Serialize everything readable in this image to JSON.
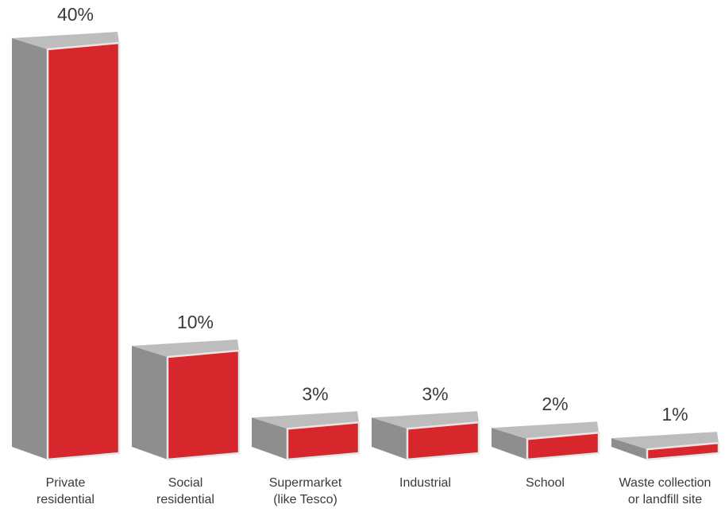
{
  "chart_data": {
    "type": "bar",
    "categories": [
      [
        "Private",
        "residential"
      ],
      [
        "Social",
        "residential"
      ],
      [
        "Supermarket",
        "(like Tesco)"
      ],
      [
        "Industrial"
      ],
      [
        "School"
      ],
      [
        "Waste collection",
        "or landfill site"
      ]
    ],
    "values": [
      40,
      10,
      3,
      3,
      2,
      1
    ],
    "data_labels": [
      "40%",
      "10%",
      "3%",
      "3%",
      "2%",
      "1%"
    ],
    "title": "",
    "xlabel": "",
    "ylabel": "",
    "ylim": [
      0,
      40
    ],
    "grid": false,
    "legend": "none",
    "style": "3d-box",
    "colors": {
      "front": "#d7262c",
      "side": "#8e8e8e",
      "top": "#bdbdbd",
      "edge": "#e6e6e6"
    }
  }
}
